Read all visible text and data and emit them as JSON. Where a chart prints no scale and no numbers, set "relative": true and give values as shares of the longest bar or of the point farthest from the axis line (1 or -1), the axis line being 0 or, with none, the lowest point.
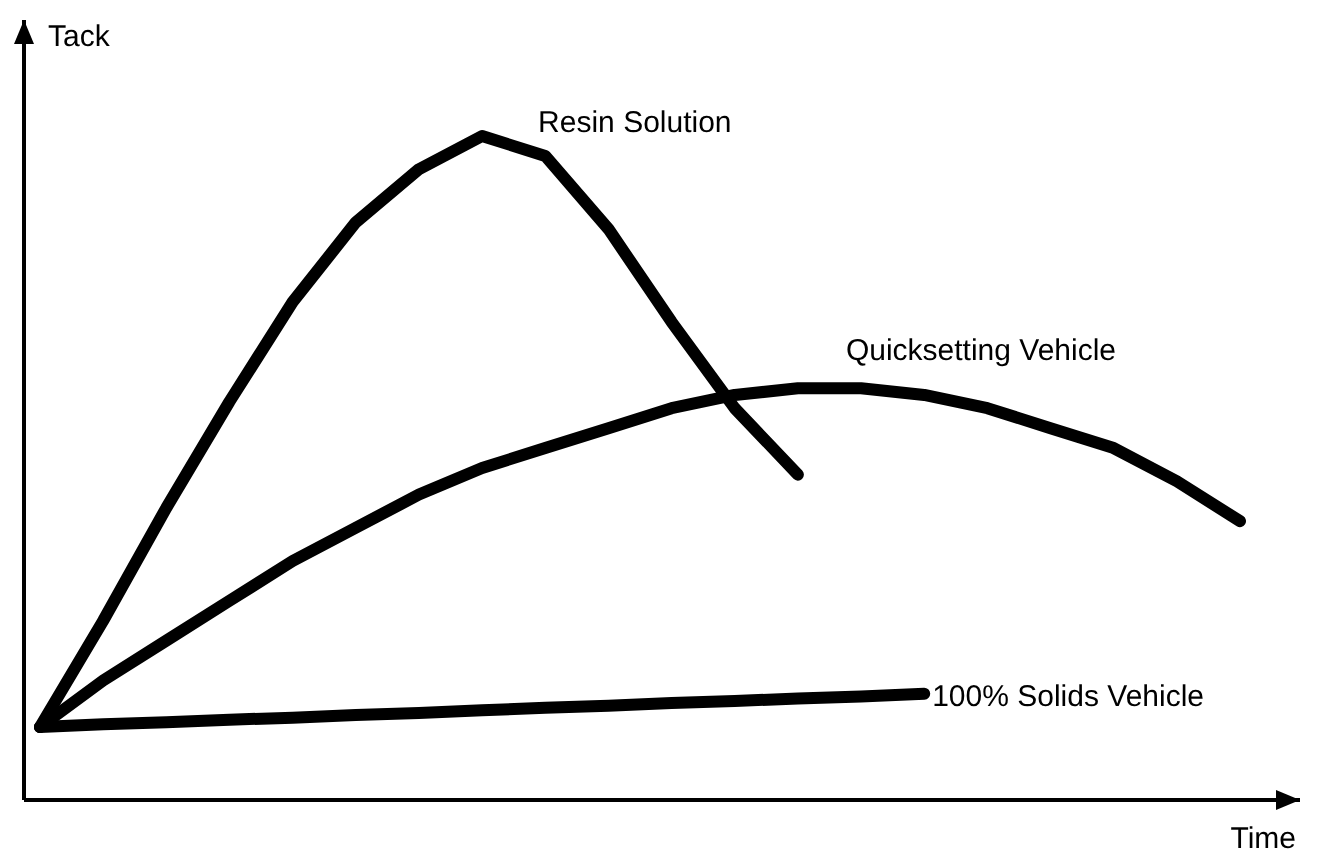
{
  "chart_data": {
    "type": "line",
    "relative": true,
    "xlabel": "Time",
    "ylabel": "Tack",
    "marker": "none",
    "line_style": "solid",
    "categories": [
      null,
      null,
      null,
      null,
      null,
      null,
      null,
      null,
      null,
      null,
      null,
      null,
      null,
      null,
      null,
      null,
      null,
      null,
      null,
      null
    ],
    "series": [
      {
        "name": "Resin Solution",
        "color": "#000000",
        "values": [
          0.11,
          0.27,
          0.44,
          0.6,
          0.75,
          0.87,
          0.95,
          1,
          0.97,
          0.86,
          0.72,
          0.59,
          0.49,
          null,
          null,
          null,
          null,
          null,
          null,
          null
        ]
      },
      {
        "name": "Quicksetting Vehicle",
        "color": "#000000",
        "values": [
          0.11,
          0.18,
          0.24,
          0.3,
          0.36,
          0.41,
          0.46,
          0.5,
          0.53,
          0.56,
          0.59,
          0.61,
          0.62,
          0.62,
          0.61,
          0.59,
          0.56,
          0.53,
          0.48,
          0.42
        ]
      },
      {
        "name": "100% Solids Vehicle",
        "color": "#000000",
        "values": [
          0.11,
          0.114,
          0.117,
          0.121,
          0.124,
          0.128,
          0.131,
          0.135,
          0.139,
          0.142,
          0.146,
          0.149,
          0.153,
          0.156,
          0.16,
          null,
          null,
          null,
          null,
          null
        ]
      }
    ]
  }
}
